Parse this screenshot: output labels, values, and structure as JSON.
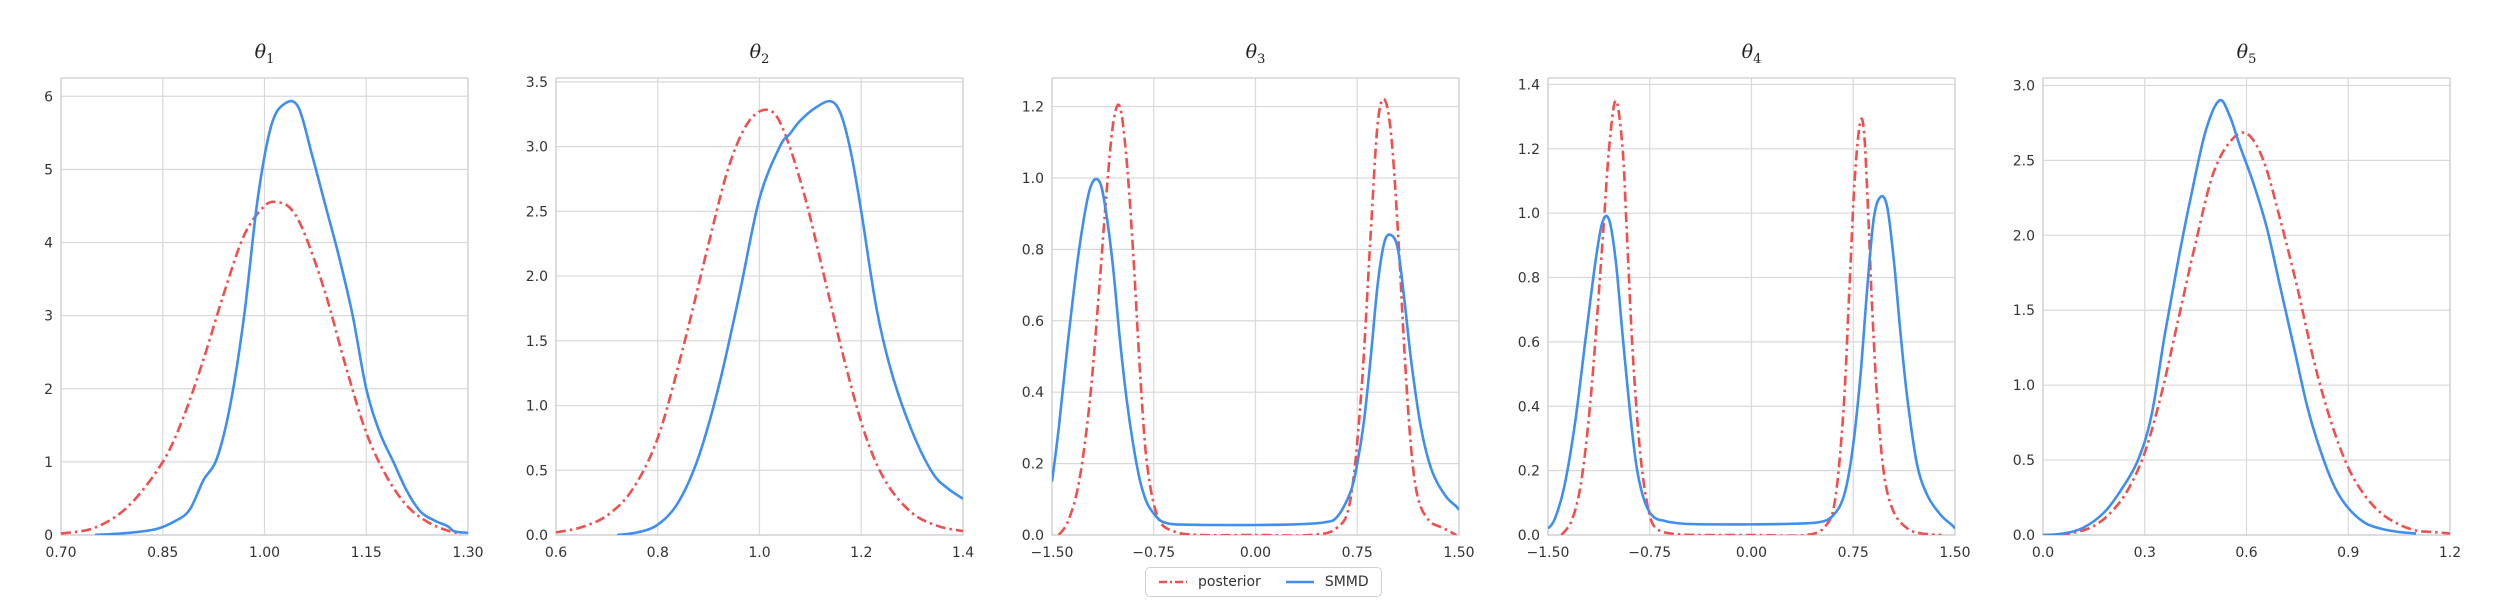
{
  "colors": {
    "posterior": "#ee5050",
    "smmd": "#3f8ef0"
  },
  "legend": [
    {
      "key": "posterior",
      "label": "posterior",
      "dash": "dashdot"
    },
    {
      "key": "smmd",
      "label": "SMMD",
      "dash": "solid"
    }
  ],
  "chart_data": [
    {
      "type": "line",
      "title_base": "θ",
      "title_sub": "1",
      "xlim": [
        0.7,
        1.3
      ],
      "ylim": [
        0,
        6.25
      ],
      "xticks": [
        "0.70",
        "0.85",
        "1.00",
        "1.15",
        "1.30"
      ],
      "xtick_values": [
        0.7,
        0.85,
        1.0,
        1.15,
        1.3
      ],
      "yticks": [
        "0",
        "1",
        "2",
        "3",
        "4",
        "5",
        "6"
      ],
      "ytick_values": [
        0,
        1,
        2,
        3,
        4,
        5,
        6
      ],
      "series": [
        {
          "name": "posterior",
          "x": [
            0.7,
            0.75,
            0.8,
            0.85,
            0.88,
            0.91,
            0.94,
            0.97,
            1.0,
            1.02,
            1.04,
            1.06,
            1.09,
            1.12,
            1.15,
            1.18,
            1.21,
            1.24,
            1.27,
            1.29
          ],
          "y": [
            0.02,
            0.1,
            0.4,
            1.0,
            1.6,
            2.4,
            3.3,
            4.1,
            4.5,
            4.55,
            4.45,
            4.1,
            3.3,
            2.3,
            1.4,
            0.8,
            0.4,
            0.18,
            0.06,
            0.02
          ]
        },
        {
          "name": "SMMD",
          "x": [
            0.75,
            0.8,
            0.84,
            0.87,
            0.89,
            0.91,
            0.93,
            0.95,
            0.97,
            0.99,
            1.01,
            1.03,
            1.05,
            1.07,
            1.09,
            1.11,
            1.13,
            1.15,
            1.17,
            1.19,
            1.21,
            1.23,
            1.25,
            1.27,
            1.28,
            1.3
          ],
          "y": [
            0.0,
            0.03,
            0.08,
            0.2,
            0.35,
            0.75,
            1.05,
            1.8,
            3.0,
            4.6,
            5.6,
            5.9,
            5.85,
            5.2,
            4.5,
            3.8,
            3.0,
            2.0,
            1.4,
            1.0,
            0.6,
            0.32,
            0.2,
            0.12,
            0.05,
            0.03
          ]
        }
      ]
    },
    {
      "type": "line",
      "title_base": "θ",
      "title_sub": "2",
      "xlim": [
        0.6,
        1.4
      ],
      "ylim": [
        0,
        3.53
      ],
      "xticks": [
        "0.6",
        "0.8",
        "1.0",
        "1.2",
        "1.4"
      ],
      "xtick_values": [
        0.6,
        0.8,
        1.0,
        1.2,
        1.4
      ],
      "yticks": [
        "0.0",
        "0.5",
        "1.0",
        "1.5",
        "2.0",
        "2.5",
        "3.0",
        "3.5"
      ],
      "ytick_values": [
        0.0,
        0.5,
        1.0,
        1.5,
        2.0,
        2.5,
        3.0,
        3.5
      ],
      "series": [
        {
          "name": "posterior",
          "x": [
            0.6,
            0.65,
            0.7,
            0.75,
            0.8,
            0.85,
            0.9,
            0.94,
            0.98,
            1.02,
            1.05,
            1.09,
            1.13,
            1.17,
            1.21,
            1.25,
            1.3,
            1.35,
            1.4
          ],
          "y": [
            0.02,
            0.06,
            0.15,
            0.35,
            0.75,
            1.45,
            2.25,
            2.85,
            3.2,
            3.28,
            3.1,
            2.6,
            1.95,
            1.3,
            0.75,
            0.4,
            0.17,
            0.07,
            0.03
          ]
        },
        {
          "name": "SMMD",
          "x": [
            0.72,
            0.76,
            0.8,
            0.84,
            0.88,
            0.92,
            0.96,
            1.0,
            1.04,
            1.06,
            1.08,
            1.11,
            1.14,
            1.16,
            1.18,
            1.2,
            1.23,
            1.26,
            1.3,
            1.34,
            1.37,
            1.4
          ],
          "y": [
            0.0,
            0.02,
            0.08,
            0.25,
            0.6,
            1.15,
            1.85,
            2.6,
            3.0,
            3.1,
            3.2,
            3.3,
            3.35,
            3.25,
            2.95,
            2.5,
            1.75,
            1.25,
            0.8,
            0.48,
            0.36,
            0.28
          ]
        }
      ]
    },
    {
      "type": "line",
      "title_base": "θ",
      "title_sub": "3",
      "xlim": [
        -1.5,
        1.5
      ],
      "ylim": [
        0,
        1.28
      ],
      "xticks": [
        "−1.50",
        "−0.75",
        "0.00",
        "0.75",
        "1.50"
      ],
      "xtick_values": [
        -1.5,
        -0.75,
        0.0,
        0.75,
        1.5
      ],
      "yticks": [
        "0.0",
        "0.2",
        "0.4",
        "0.6",
        "0.8",
        "1.0",
        "1.2"
      ],
      "ytick_values": [
        0.0,
        0.2,
        0.4,
        0.6,
        0.8,
        1.0,
        1.2
      ],
      "series": [
        {
          "name": "posterior",
          "x": [
            -1.45,
            -1.38,
            -1.3,
            -1.22,
            -1.15,
            -1.1,
            -1.05,
            -1.0,
            -0.95,
            -0.9,
            -0.85,
            -0.8,
            -0.72,
            -0.6,
            -0.4,
            0.0,
            0.4,
            0.6,
            0.7,
            0.78,
            0.85,
            0.9,
            0.95,
            1.0,
            1.05,
            1.1,
            1.15,
            1.2,
            1.28,
            1.38,
            1.48
          ],
          "y": [
            0.0,
            0.04,
            0.15,
            0.38,
            0.7,
            0.95,
            1.15,
            1.2,
            1.05,
            0.78,
            0.45,
            0.2,
            0.05,
            0.01,
            0.0,
            0.0,
            0.0,
            0.02,
            0.1,
            0.4,
            0.85,
            1.15,
            1.22,
            1.12,
            0.85,
            0.5,
            0.23,
            0.1,
            0.04,
            0.02,
            0.0
          ]
        },
        {
          "name": "SMMD",
          "x": [
            -1.5,
            -1.45,
            -1.38,
            -1.3,
            -1.22,
            -1.15,
            -1.1,
            -1.05,
            -1.0,
            -0.95,
            -0.9,
            -0.85,
            -0.8,
            -0.75,
            -0.7,
            -0.65,
            -0.6,
            -0.5,
            -0.3,
            0.0,
            0.3,
            0.5,
            0.6,
            0.7,
            0.75,
            0.8,
            0.85,
            0.9,
            0.95,
            1.0,
            1.05,
            1.1,
            1.15,
            1.22,
            1.3,
            1.4,
            1.48,
            1.5
          ],
          "y": [
            0.15,
            0.3,
            0.55,
            0.8,
            0.97,
            0.99,
            0.9,
            0.75,
            0.55,
            0.38,
            0.25,
            0.15,
            0.09,
            0.06,
            0.04,
            0.033,
            0.03,
            0.029,
            0.028,
            0.028,
            0.03,
            0.035,
            0.05,
            0.12,
            0.2,
            0.32,
            0.5,
            0.7,
            0.82,
            0.84,
            0.8,
            0.65,
            0.48,
            0.3,
            0.18,
            0.11,
            0.08,
            0.07
          ]
        }
      ]
    },
    {
      "type": "line",
      "title_base": "θ",
      "title_sub": "4",
      "xlim": [
        -1.5,
        1.5
      ],
      "ylim": [
        0,
        1.42
      ],
      "xticks": [
        "−1.50",
        "−0.75",
        "0.00",
        "0.75",
        "1.50"
      ],
      "xtick_values": [
        -1.5,
        -0.75,
        0.0,
        0.75,
        1.5
      ],
      "yticks": [
        "0.0",
        "0.2",
        "0.4",
        "0.6",
        "0.8",
        "1.0",
        "1.2",
        "1.4"
      ],
      "ytick_values": [
        0.0,
        0.2,
        0.4,
        0.6,
        0.8,
        1.0,
        1.2,
        1.4
      ],
      "series": [
        {
          "name": "posterior",
          "x": [
            -1.4,
            -1.32,
            -1.25,
            -1.18,
            -1.1,
            -1.05,
            -1.0,
            -0.95,
            -0.92,
            -0.88,
            -0.84,
            -0.8,
            -0.75,
            -0.7,
            -0.6,
            -0.4,
            0.0,
            0.4,
            0.55,
            0.62,
            0.68,
            0.72,
            0.76,
            0.8,
            0.83,
            0.86,
            0.89,
            0.93,
            0.98,
            1.05,
            1.15,
            1.25,
            1.4
          ],
          "y": [
            0.0,
            0.05,
            0.18,
            0.45,
            0.9,
            1.2,
            1.35,
            1.2,
            0.95,
            0.6,
            0.35,
            0.18,
            0.06,
            0.02,
            0.005,
            0.0,
            0.0,
            0.0,
            0.03,
            0.12,
            0.4,
            0.75,
            1.1,
            1.28,
            1.25,
            1.0,
            0.7,
            0.4,
            0.18,
            0.07,
            0.02,
            0.005,
            0.0
          ]
        },
        {
          "name": "SMMD",
          "x": [
            -1.5,
            -1.45,
            -1.38,
            -1.3,
            -1.22,
            -1.15,
            -1.1,
            -1.05,
            -1.0,
            -0.95,
            -0.9,
            -0.85,
            -0.8,
            -0.75,
            -0.7,
            -0.65,
            -0.6,
            -0.5,
            -0.3,
            0.0,
            0.3,
            0.5,
            0.6,
            0.68,
            0.74,
            0.8,
            0.85,
            0.9,
            0.95,
            1.0,
            1.05,
            1.1,
            1.15,
            1.22,
            1.3,
            1.4,
            1.48,
            1.5
          ],
          "y": [
            0.02,
            0.05,
            0.15,
            0.35,
            0.62,
            0.85,
            0.97,
            0.98,
            0.85,
            0.62,
            0.4,
            0.22,
            0.12,
            0.07,
            0.05,
            0.045,
            0.04,
            0.035,
            0.033,
            0.033,
            0.035,
            0.04,
            0.06,
            0.12,
            0.25,
            0.48,
            0.75,
            0.98,
            1.05,
            1.02,
            0.85,
            0.62,
            0.42,
            0.22,
            0.12,
            0.06,
            0.03,
            0.02
          ]
        }
      ]
    },
    {
      "type": "line",
      "title_base": "θ",
      "title_sub": "5",
      "xlim": [
        0.0,
        1.2
      ],
      "ylim": [
        0,
        3.05
      ],
      "xticks": [
        "0.0",
        "0.3",
        "0.6",
        "0.9",
        "1.2"
      ],
      "xtick_values": [
        0.0,
        0.3,
        0.6,
        0.9,
        1.2
      ],
      "yticks": [
        "0.0",
        "0.5",
        "1.0",
        "1.5",
        "2.0",
        "2.5",
        "3.0"
      ],
      "ytick_values": [
        0.0,
        0.5,
        1.0,
        1.5,
        2.0,
        2.5,
        3.0
      ],
      "series": [
        {
          "name": "posterior",
          "x": [
            0.05,
            0.1,
            0.15,
            0.2,
            0.25,
            0.3,
            0.35,
            0.4,
            0.45,
            0.5,
            0.55,
            0.6,
            0.65,
            0.7,
            0.75,
            0.8,
            0.85,
            0.9,
            0.95,
            1.0,
            1.05,
            1.1,
            1.15,
            1.2
          ],
          "y": [
            0.0,
            0.02,
            0.06,
            0.15,
            0.3,
            0.55,
            0.95,
            1.45,
            1.95,
            2.4,
            2.62,
            2.68,
            2.5,
            2.1,
            1.65,
            1.15,
            0.75,
            0.45,
            0.26,
            0.14,
            0.07,
            0.03,
            0.02,
            0.01
          ]
        },
        {
          "name": "SMMD",
          "x": [
            0.0,
            0.06,
            0.12,
            0.18,
            0.23,
            0.28,
            0.32,
            0.36,
            0.4,
            0.44,
            0.48,
            0.52,
            0.55,
            0.58,
            0.62,
            0.66,
            0.7,
            0.74,
            0.78,
            0.82,
            0.86,
            0.9,
            0.95,
            1.0,
            1.05,
            1.1
          ],
          "y": [
            0.0,
            0.01,
            0.05,
            0.15,
            0.3,
            0.5,
            0.8,
            1.35,
            1.85,
            2.3,
            2.7,
            2.9,
            2.8,
            2.6,
            2.35,
            2.05,
            1.65,
            1.25,
            0.85,
            0.55,
            0.32,
            0.18,
            0.08,
            0.04,
            0.02,
            0.01
          ]
        }
      ]
    }
  ]
}
